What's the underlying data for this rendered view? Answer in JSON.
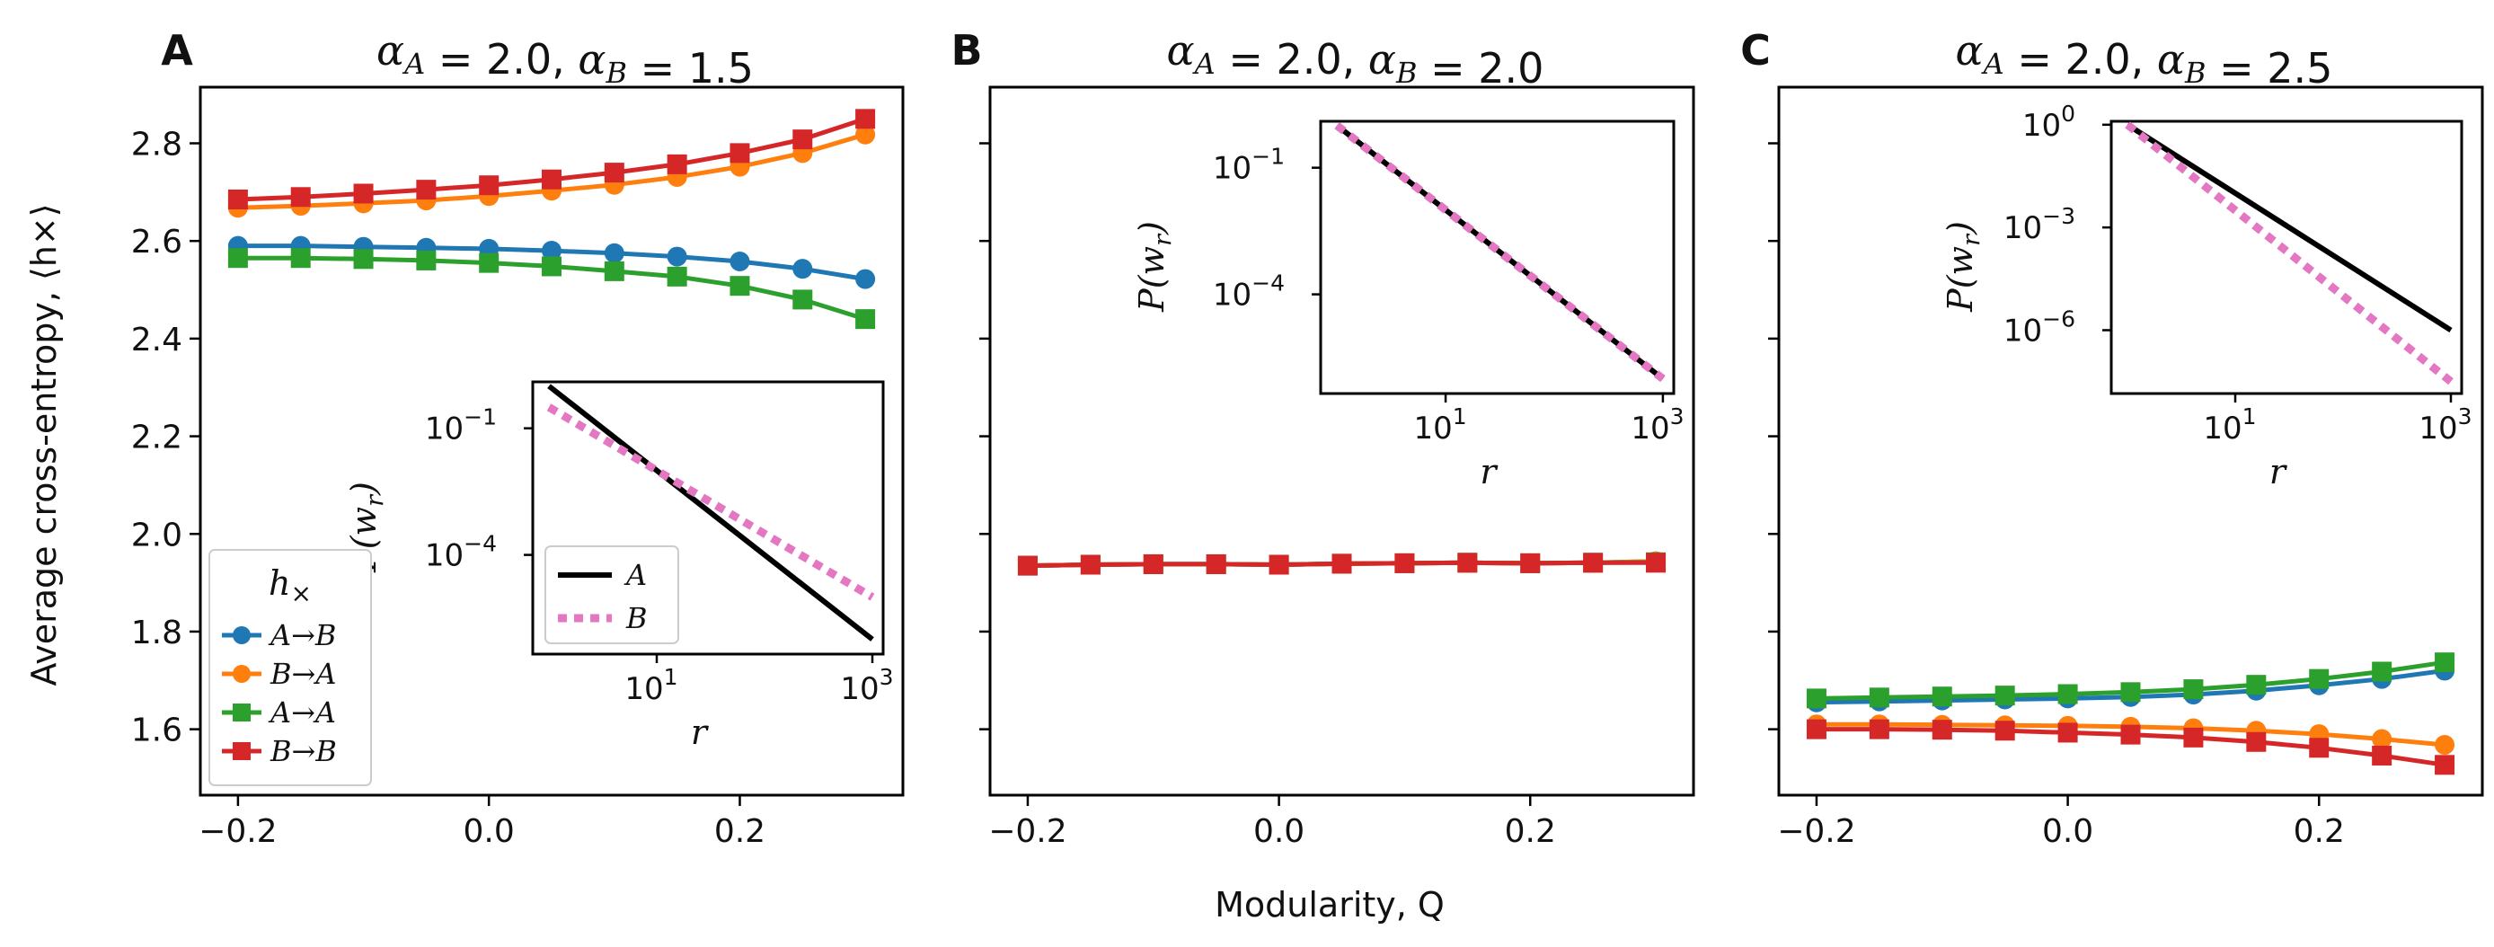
{
  "chart_data": [
    {
      "type": "line",
      "panel": "A",
      "title": "αA = 2.0, αB = 1.5",
      "xlabel": "",
      "ylabel": "Average cross-entropy, ⟨h×⟩",
      "xlim": [
        -0.23,
        0.33
      ],
      "ylim": [
        1.465,
        2.915
      ],
      "x_ticks": [
        "−0.2",
        "0.0",
        "0.2"
      ],
      "y_ticks": [
        "1.6",
        "1.8",
        "2.0",
        "2.2",
        "2.4",
        "2.6",
        "2.8"
      ],
      "x": [
        -0.2,
        -0.15,
        -0.1,
        -0.05,
        0.0,
        0.05,
        0.1,
        0.15,
        0.2,
        0.25,
        0.3
      ],
      "legend": {
        "title": "h×",
        "position": "lower-left",
        "entries": [
          "A→B",
          "B→A",
          "A→A",
          "B→B"
        ]
      },
      "series": [
        {
          "name": "A→B",
          "color": "#1f77b4",
          "marker": "circle",
          "values": [
            2.59,
            2.59,
            2.588,
            2.586,
            2.584,
            2.58,
            2.575,
            2.568,
            2.558,
            2.543,
            2.522
          ]
        },
        {
          "name": "B→A",
          "color": "#ff7f0e",
          "marker": "circle",
          "values": [
            2.668,
            2.672,
            2.677,
            2.683,
            2.692,
            2.703,
            2.715,
            2.731,
            2.752,
            2.78,
            2.818
          ]
        },
        {
          "name": "A→A",
          "color": "#2ca02c",
          "marker": "square",
          "values": [
            2.565,
            2.565,
            2.563,
            2.56,
            2.555,
            2.548,
            2.538,
            2.527,
            2.508,
            2.48,
            2.44
          ]
        },
        {
          "name": "B→B",
          "color": "#d62728",
          "marker": "square",
          "values": [
            2.685,
            2.69,
            2.697,
            2.705,
            2.714,
            2.726,
            2.74,
            2.757,
            2.78,
            2.808,
            2.85
          ]
        }
      ],
      "inset": {
        "type": "line",
        "xscale": "log",
        "yscale": "log",
        "xlabel": "r",
        "ylabel": "P(wr)",
        "x_tick_labels": [
          "10",
          "10"
        ],
        "x_tick_exponents": [
          "1",
          "3"
        ],
        "y_tick_labels": [
          "10",
          "10"
        ],
        "y_tick_exponents": [
          "−1",
          "−4"
        ],
        "legend_position": "lower-left",
        "series": [
          {
            "name": "A",
            "style": "solid",
            "color": "#000000",
            "alpha": 2.0
          },
          {
            "name": "B",
            "style": "dotted",
            "color": "#e377c2",
            "alpha": 1.5
          }
        ]
      }
    },
    {
      "type": "line",
      "panel": "B",
      "title": "αA = 2.0, αB = 2.0",
      "xlabel": "Modularity, Q",
      "x_ticks": [
        "−0.2",
        "0.0",
        "0.2"
      ],
      "x": [
        -0.2,
        -0.15,
        -0.1,
        -0.05,
        0.0,
        0.05,
        0.1,
        0.15,
        0.2,
        0.25,
        0.3
      ],
      "series": [
        {
          "name": "A→B",
          "color": "#1f77b4",
          "marker": "circle",
          "values": [
            1.935,
            1.937,
            1.938,
            1.938,
            1.937,
            1.939,
            1.94,
            1.941,
            1.94,
            1.941,
            1.944
          ]
        },
        {
          "name": "B→A",
          "color": "#ff7f0e",
          "marker": "circle",
          "values": [
            1.935,
            1.937,
            1.938,
            1.938,
            1.937,
            1.939,
            1.94,
            1.941,
            1.94,
            1.941,
            1.944
          ]
        },
        {
          "name": "A→A",
          "color": "#2ca02c",
          "marker": "square",
          "values": [
            1.935,
            1.937,
            1.938,
            1.938,
            1.937,
            1.939,
            1.94,
            1.941,
            1.94,
            1.941,
            1.942
          ]
        },
        {
          "name": "B→B",
          "color": "#d62728",
          "marker": "square",
          "values": [
            1.935,
            1.937,
            1.938,
            1.938,
            1.937,
            1.939,
            1.94,
            1.941,
            1.94,
            1.941,
            1.941
          ]
        }
      ],
      "inset": {
        "type": "line",
        "xscale": "log",
        "yscale": "log",
        "xlabel": "r",
        "ylabel": "P(wr)",
        "x_tick_labels": [
          "10",
          "10"
        ],
        "x_tick_exponents": [
          "1",
          "3"
        ],
        "y_tick_labels": [
          "10",
          "10"
        ],
        "y_tick_exponents": [
          "−1",
          "−4"
        ],
        "series": [
          {
            "name": "A",
            "style": "solid",
            "color": "#000000",
            "alpha": 2.0
          },
          {
            "name": "B",
            "style": "dotted",
            "color": "#e377c2",
            "alpha": 2.0
          }
        ]
      }
    },
    {
      "type": "line",
      "panel": "C",
      "title": "αA = 2.0, αB = 2.5",
      "x_ticks": [
        "−0.2",
        "0.0",
        "0.2"
      ],
      "x": [
        -0.2,
        -0.15,
        -0.1,
        -0.05,
        0.0,
        0.05,
        0.1,
        0.15,
        0.2,
        0.25,
        0.3
      ],
      "series": [
        {
          "name": "A→B",
          "color": "#1f77b4",
          "marker": "circle",
          "values": [
            1.655,
            1.657,
            1.659,
            1.661,
            1.663,
            1.666,
            1.671,
            1.679,
            1.69,
            1.703,
            1.72
          ]
        },
        {
          "name": "B→A",
          "color": "#ff7f0e",
          "marker": "circle",
          "values": [
            1.61,
            1.61,
            1.609,
            1.608,
            1.607,
            1.605,
            1.602,
            1.597,
            1.59,
            1.58,
            1.568
          ]
        },
        {
          "name": "A→A",
          "color": "#2ca02c",
          "marker": "square",
          "values": [
            1.663,
            1.665,
            1.667,
            1.669,
            1.672,
            1.676,
            1.682,
            1.691,
            1.703,
            1.718,
            1.737
          ]
        },
        {
          "name": "B→B",
          "color": "#d62728",
          "marker": "square",
          "values": [
            1.6,
            1.6,
            1.599,
            1.597,
            1.593,
            1.589,
            1.583,
            1.574,
            1.562,
            1.546,
            1.527
          ]
        }
      ],
      "inset": {
        "type": "line",
        "xscale": "log",
        "yscale": "log",
        "xlabel": "r",
        "ylabel": "P(wr)",
        "x_tick_labels": [
          "10",
          "10"
        ],
        "x_tick_exponents": [
          "1",
          "3"
        ],
        "y_tick_labels": [
          "10",
          "10",
          "10"
        ],
        "y_tick_exponents": [
          "0",
          "−3",
          "−6"
        ],
        "series": [
          {
            "name": "A",
            "style": "solid",
            "color": "#000000",
            "alpha": 2.0
          },
          {
            "name": "B",
            "style": "dotted",
            "color": "#e377c2",
            "alpha": 2.5
          }
        ]
      }
    }
  ]
}
